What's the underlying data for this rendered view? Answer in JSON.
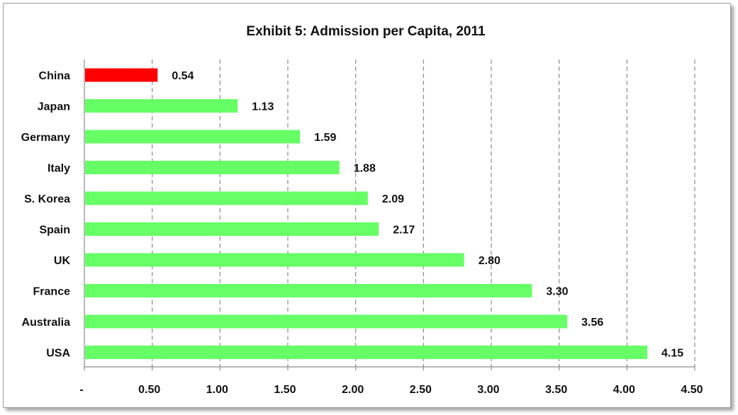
{
  "chart_data": {
    "type": "bar",
    "orientation": "horizontal",
    "title": "Exhibit 5: Admission per Capita, 2011",
    "categories": [
      "China",
      "Japan",
      "Germany",
      "Italy",
      "S. Korea",
      "Spain",
      "UK",
      "France",
      "Australia",
      "USA"
    ],
    "values": [
      0.54,
      1.13,
      1.59,
      1.88,
      2.09,
      2.17,
      2.8,
      3.3,
      3.56,
      4.15
    ],
    "data_labels": [
      "0.54",
      "1.13",
      "1.59",
      "1.88",
      "2.09",
      "2.17",
      "2.80",
      "3.30",
      "3.56",
      "4.15"
    ],
    "xlim": [
      0,
      4.5
    ],
    "x_ticks": [
      0,
      0.5,
      1.0,
      1.5,
      2.0,
      2.5,
      3.0,
      3.5,
      4.0,
      4.5
    ],
    "x_tick_labels": [
      "-",
      "0.50",
      "1.00",
      "1.50",
      "2.00",
      "2.50",
      "3.00",
      "3.50",
      "4.00",
      "4.50"
    ],
    "grid": "vertical dashed",
    "colors": {
      "highlight": "#ff0000",
      "default": "#66ff66",
      "grid": "#8c8c8c"
    },
    "highlight_category": "China"
  }
}
